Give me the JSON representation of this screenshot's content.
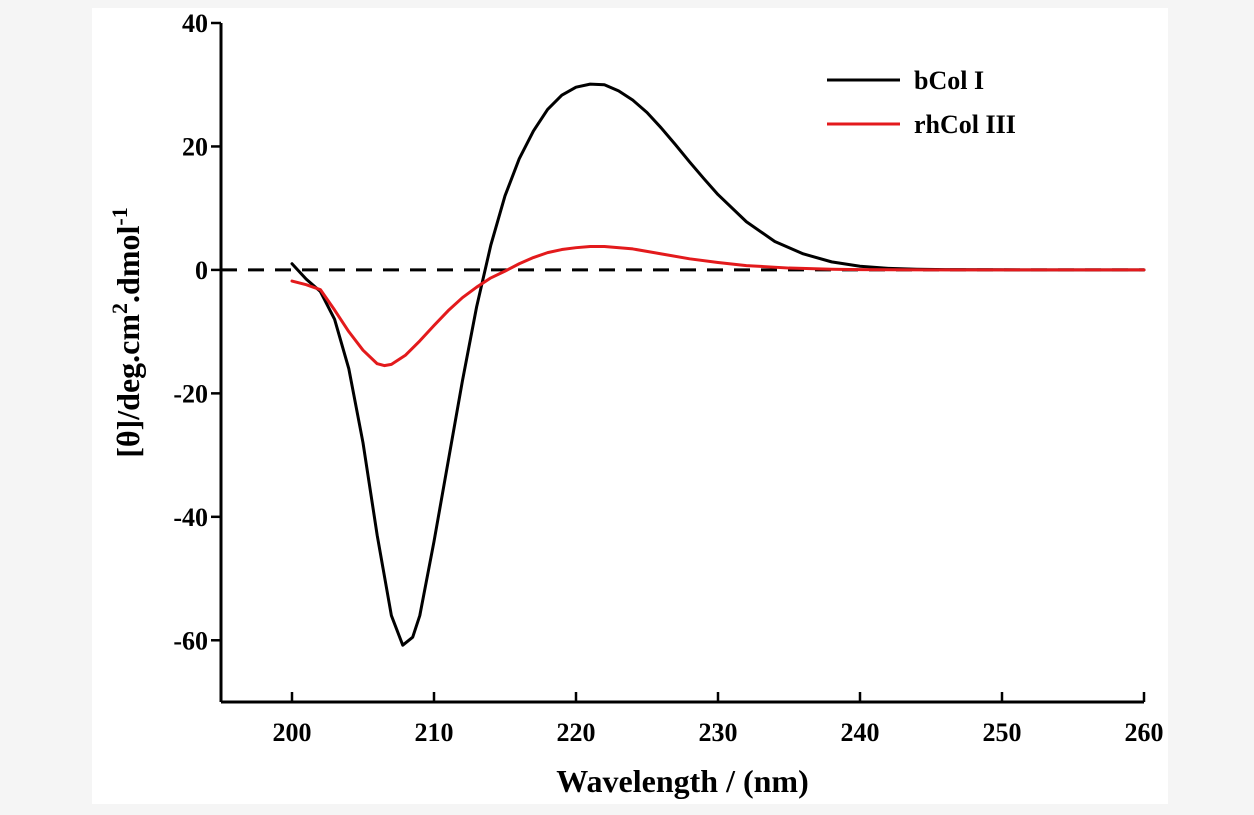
{
  "chart_data": {
    "type": "line",
    "xlabel": "Wavelength / (nm)",
    "ylabel": {
      "base": "[θ]/deg.cm",
      "sup1": "2",
      "mid": ".dmol",
      "sup2": "-1"
    },
    "xlim": [
      195,
      260
    ],
    "ylim": [
      -70,
      40
    ],
    "x_ticks": [
      200,
      210,
      220,
      230,
      240,
      250,
      260
    ],
    "x_tick_labels": [
      "200",
      "210",
      "220",
      "230",
      "240",
      "250",
      "260"
    ],
    "y_ticks": [
      40,
      20,
      0,
      -20,
      -40,
      -60
    ],
    "y_tick_labels": [
      "40",
      "20",
      "0",
      "-20",
      "-40",
      "-60"
    ],
    "grid": false,
    "legend_position": "top-right",
    "zero_reference_line": {
      "y": 0,
      "style": "dashed",
      "color": "#000000"
    },
    "series": [
      {
        "name": "bCol I",
        "color": "#000000",
        "x": [
          200,
          201,
          202,
          203,
          204,
          205,
          206,
          207,
          207.8,
          208.5,
          209,
          210,
          211,
          212,
          213,
          214,
          215,
          216,
          217,
          218,
          219,
          220,
          221,
          222,
          223,
          224,
          225,
          226,
          227,
          228,
          229,
          230,
          232,
          234,
          236,
          238,
          240,
          242,
          244,
          246,
          250,
          255,
          260
        ],
        "y": [
          1.0,
          -1.5,
          -3.5,
          -8,
          -16,
          -28,
          -43,
          -56,
          -60.8,
          -59.5,
          -56,
          -44,
          -31,
          -18,
          -6,
          4,
          12,
          18,
          22.5,
          26,
          28.3,
          29.6,
          30.1,
          30.0,
          29.0,
          27.5,
          25.5,
          23.0,
          20.3,
          17.5,
          14.8,
          12.2,
          7.8,
          4.6,
          2.6,
          1.3,
          0.6,
          0.25,
          0.1,
          0.05,
          0.02,
          0.0,
          0.0
        ]
      },
      {
        "name": "rhCol III",
        "color": "#e31a1c",
        "x": [
          200,
          201,
          202,
          203,
          204,
          205,
          206,
          206.5,
          207,
          208,
          209,
          210,
          211,
          212,
          213,
          214,
          215,
          216,
          217,
          218,
          219,
          220,
          221,
          222,
          224,
          226,
          228,
          230,
          232,
          235,
          238,
          240,
          245,
          250,
          255,
          260
        ],
        "y": [
          -1.8,
          -2.4,
          -3.2,
          -6.5,
          -10,
          -13,
          -15.2,
          -15.5,
          -15.3,
          -13.8,
          -11.5,
          -9,
          -6.6,
          -4.5,
          -2.8,
          -1.3,
          -0.2,
          1.0,
          2.0,
          2.8,
          3.3,
          3.6,
          3.8,
          3.8,
          3.4,
          2.6,
          1.8,
          1.2,
          0.7,
          0.3,
          0.1,
          0.05,
          0.0,
          0.0,
          0.0,
          0.0
        ]
      }
    ]
  }
}
